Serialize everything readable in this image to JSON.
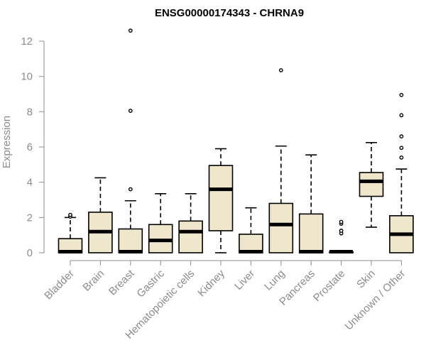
{
  "chart_data": {
    "type": "box",
    "title": "ENSG00000174343 - CHRNA9",
    "xlabel": "",
    "ylabel": "Expression",
    "ylim": [
      0,
      12.8
    ],
    "yticks": [
      0,
      2,
      4,
      6,
      8,
      10,
      12
    ],
    "grid": false,
    "colors": {
      "box_fill": "#efe7cc",
      "box_stroke": "#000000",
      "axis": "#8c8c8c"
    },
    "categories": [
      "Bladder",
      "Brain",
      "Breast",
      "Gastric",
      "Hematopoietic cells",
      "Kidney",
      "Liver",
      "Lung",
      "Pancreas",
      "Prostate",
      "Skin",
      "Unknown / Other"
    ],
    "boxes": [
      {
        "category": "Bladder",
        "min": 0,
        "q1": 0,
        "median": 0.05,
        "q3": 0.8,
        "max": 2.0,
        "outliers": [
          2.05,
          2.15
        ]
      },
      {
        "category": "Brain",
        "min": 0,
        "q1": 0,
        "median": 1.2,
        "q3": 2.3,
        "max": 4.25,
        "outliers": []
      },
      {
        "category": "Breast",
        "min": 0,
        "q1": 0,
        "median": 0.05,
        "q3": 1.35,
        "max": 2.95,
        "outliers": [
          3.6,
          8.05,
          12.6
        ]
      },
      {
        "category": "Gastric",
        "min": 0,
        "q1": 0,
        "median": 0.7,
        "q3": 1.6,
        "max": 3.35,
        "outliers": []
      },
      {
        "category": "Hematopoietic cells",
        "min": 0,
        "q1": 0,
        "median": 1.2,
        "q3": 1.8,
        "max": 3.35,
        "outliers": []
      },
      {
        "category": "Kidney",
        "min": 0,
        "q1": 1.25,
        "median": 3.6,
        "q3": 4.95,
        "max": 5.9,
        "outliers": []
      },
      {
        "category": "Liver",
        "min": 0,
        "q1": 0,
        "median": 0.05,
        "q3": 1.05,
        "max": 2.55,
        "outliers": []
      },
      {
        "category": "Lung",
        "min": 0,
        "q1": 0,
        "median": 1.6,
        "q3": 2.8,
        "max": 6.05,
        "outliers": [
          10.35
        ]
      },
      {
        "category": "Pancreas",
        "min": 0,
        "q1": 0,
        "median": 0.05,
        "q3": 2.2,
        "max": 5.55,
        "outliers": []
      },
      {
        "category": "Prostate",
        "min": 0,
        "q1": 0,
        "median": 0.05,
        "q3": 0.05,
        "max": 0.05,
        "outliers": [
          1.1,
          1.25,
          1.65,
          1.75
        ]
      },
      {
        "category": "Skin",
        "min": 1.45,
        "q1": 3.2,
        "median": 4.05,
        "q3": 4.55,
        "max": 6.25,
        "outliers": []
      },
      {
        "category": "Unknown / Other",
        "min": 0,
        "q1": 0,
        "median": 1.05,
        "q3": 2.1,
        "max": 4.75,
        "outliers": [
          5.4,
          5.95,
          6.6,
          7.8,
          8.95
        ]
      }
    ]
  }
}
